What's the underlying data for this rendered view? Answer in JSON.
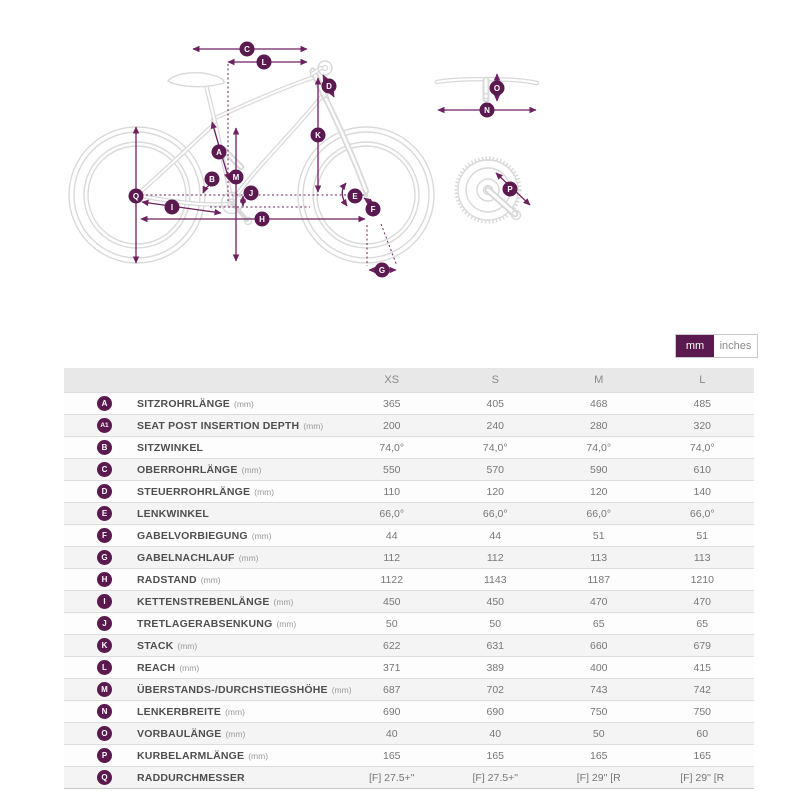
{
  "colors": {
    "accent": "#5b1a4f",
    "arrow": "#6d2160",
    "bike_line": "#d9d9d9",
    "header_bg": "#e8e8e8"
  },
  "unit_toggle": {
    "mm_label": "mm",
    "inches_label": "inches",
    "selected": "mm"
  },
  "diagram": {
    "badges": [
      {
        "letter": "A"
      },
      {
        "letter": "B"
      },
      {
        "letter": "C"
      },
      {
        "letter": "D"
      },
      {
        "letter": "E"
      },
      {
        "letter": "F"
      },
      {
        "letter": "G"
      },
      {
        "letter": "H"
      },
      {
        "letter": "I"
      },
      {
        "letter": "J"
      },
      {
        "letter": "K"
      },
      {
        "letter": "L"
      },
      {
        "letter": "M"
      },
      {
        "letter": "N"
      },
      {
        "letter": "O"
      },
      {
        "letter": "P"
      },
      {
        "letter": "Q"
      }
    ]
  },
  "table": {
    "columns": [
      "XS",
      "S",
      "M",
      "L"
    ],
    "rows": [
      {
        "key": "A",
        "label": "SITZROHRLÄNGE",
        "unit": "(mm)",
        "values": [
          "365",
          "405",
          "468",
          "485"
        ]
      },
      {
        "key": "A1",
        "label": "SEAT POST INSERTION DEPTH",
        "unit": "(mm)",
        "values": [
          "200",
          "240",
          "280",
          "320"
        ]
      },
      {
        "key": "B",
        "label": "SITZWINKEL",
        "unit": "",
        "values": [
          "74,0°",
          "74,0°",
          "74,0°",
          "74,0°"
        ]
      },
      {
        "key": "C",
        "label": "OBERROHRLÄNGE",
        "unit": "(mm)",
        "values": [
          "550",
          "570",
          "590",
          "610"
        ]
      },
      {
        "key": "D",
        "label": "STEUERROHRLÄNGE",
        "unit": "(mm)",
        "values": [
          "110",
          "120",
          "120",
          "140"
        ]
      },
      {
        "key": "E",
        "label": "LENKWINKEL",
        "unit": "",
        "values": [
          "66,0°",
          "66,0°",
          "66,0°",
          "66,0°"
        ]
      },
      {
        "key": "F",
        "label": "GABELVORBIEGUNG",
        "unit": "(mm)",
        "values": [
          "44",
          "44",
          "51",
          "51"
        ]
      },
      {
        "key": "G",
        "label": "GABELNACHLAUF",
        "unit": "(mm)",
        "values": [
          "112",
          "112",
          "113",
          "113"
        ]
      },
      {
        "key": "H",
        "label": "RADSTAND",
        "unit": "(mm)",
        "values": [
          "1122",
          "1143",
          "1187",
          "1210"
        ]
      },
      {
        "key": "I",
        "label": "KETTENSTREBENLÄNGE",
        "unit": "(mm)",
        "values": [
          "450",
          "450",
          "470",
          "470"
        ]
      },
      {
        "key": "J",
        "label": "TRETLAGERABSENKUNG",
        "unit": "(mm)",
        "values": [
          "50",
          "50",
          "65",
          "65"
        ]
      },
      {
        "key": "K",
        "label": "STACK",
        "unit": "(mm)",
        "values": [
          "622",
          "631",
          "660",
          "679"
        ]
      },
      {
        "key": "L",
        "label": "REACH",
        "unit": "(mm)",
        "values": [
          "371",
          "389",
          "400",
          "415"
        ]
      },
      {
        "key": "M",
        "label": "ÜBERSTANDS-/DURCHSTIEGSHÖHE",
        "unit": "(mm)",
        "values": [
          "687",
          "702",
          "743",
          "742"
        ]
      },
      {
        "key": "N",
        "label": "LENKERBREITE",
        "unit": "(mm)",
        "values": [
          "690",
          "690",
          "750",
          "750"
        ]
      },
      {
        "key": "O",
        "label": "VORBAULÄNGE",
        "unit": "(mm)",
        "values": [
          "40",
          "40",
          "50",
          "60"
        ]
      },
      {
        "key": "P",
        "label": "KURBELARMLÄNGE",
        "unit": "(mm)",
        "values": [
          "165",
          "165",
          "165",
          "165"
        ]
      },
      {
        "key": "Q",
        "label": "RADDURCHMESSER",
        "unit": "",
        "values": [
          "[F] 27.5+\"",
          "[F] 27.5+\"",
          "[F] 29\" [R",
          "[F] 29\" [R"
        ]
      }
    ]
  }
}
